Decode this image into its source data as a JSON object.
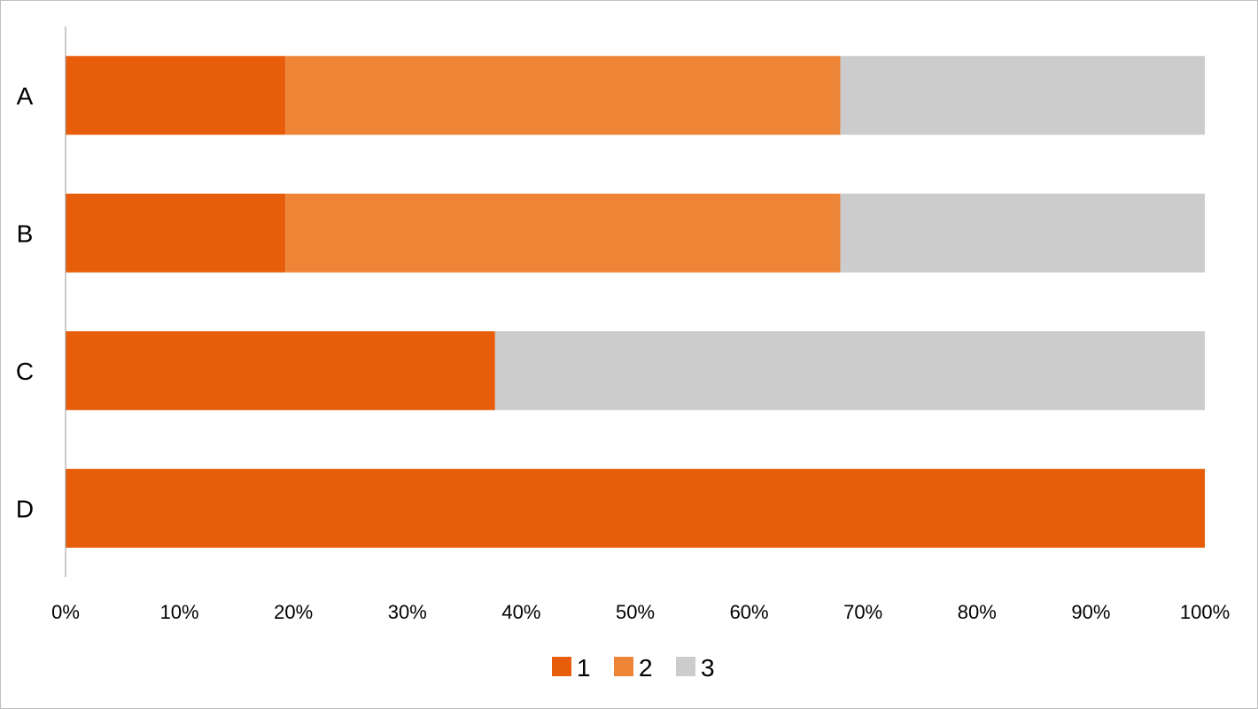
{
  "chart_data": {
    "type": "bar",
    "orientation": "horizontal",
    "stacked": "percent",
    "title": "",
    "xlabel": "",
    "ylabel": "",
    "categories": [
      "A",
      "B",
      "C",
      "D"
    ],
    "series": [
      {
        "name": "1",
        "color": "#E85D0A",
        "values": [
          19.3,
          19.3,
          37.7,
          100
        ]
      },
      {
        "name": "2",
        "color": "#ED8436",
        "values": [
          48.7,
          48.7,
          0,
          0
        ]
      },
      {
        "name": "3",
        "color": "#CCCCCC",
        "values": [
          32.0,
          32.0,
          62.3,
          0
        ]
      }
    ],
    "xlim": [
      0,
      100
    ],
    "xticks": [
      "0%",
      "10%",
      "20%",
      "30%",
      "40%",
      "50%",
      "60%",
      "70%",
      "80%",
      "90%",
      "100%"
    ],
    "grid": false,
    "legend": {
      "position": "bottom",
      "entries": [
        "1",
        "2",
        "3"
      ]
    }
  }
}
